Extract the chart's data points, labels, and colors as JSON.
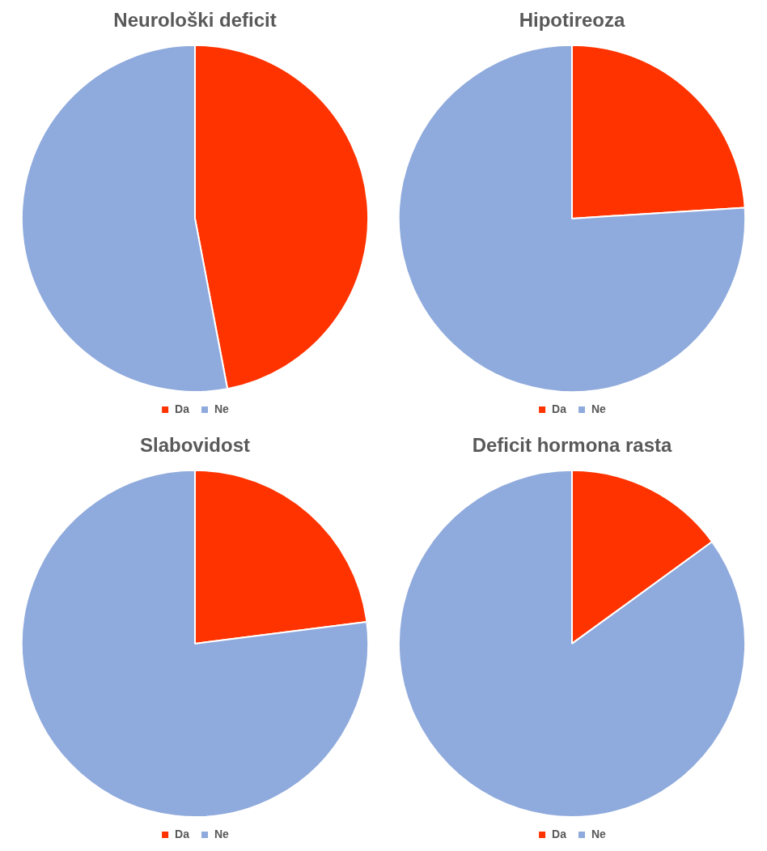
{
  "chart_data": [
    {
      "type": "pie",
      "title": "Neurološki deficit",
      "categories": [
        "Da",
        "Ne"
      ],
      "values": [
        47,
        53
      ],
      "colors": [
        "#ff3300",
        "#8faadc"
      ],
      "legend": "bottom"
    },
    {
      "type": "pie",
      "title": "Hipotireoza",
      "categories": [
        "Da",
        "Ne"
      ],
      "values": [
        24,
        76
      ],
      "colors": [
        "#ff3300",
        "#8faadc"
      ],
      "legend": "bottom"
    },
    {
      "type": "pie",
      "title": "Slabovidost",
      "categories": [
        "Da",
        "Ne"
      ],
      "values": [
        23,
        77
      ],
      "colors": [
        "#ff3300",
        "#8faadc"
      ],
      "legend": "bottom"
    },
    {
      "type": "pie",
      "title": "Deficit hormona rasta",
      "categories": [
        "Da",
        "Ne"
      ],
      "values": [
        15,
        85
      ],
      "colors": [
        "#ff3300",
        "#8faadc"
      ],
      "legend": "bottom"
    }
  ]
}
